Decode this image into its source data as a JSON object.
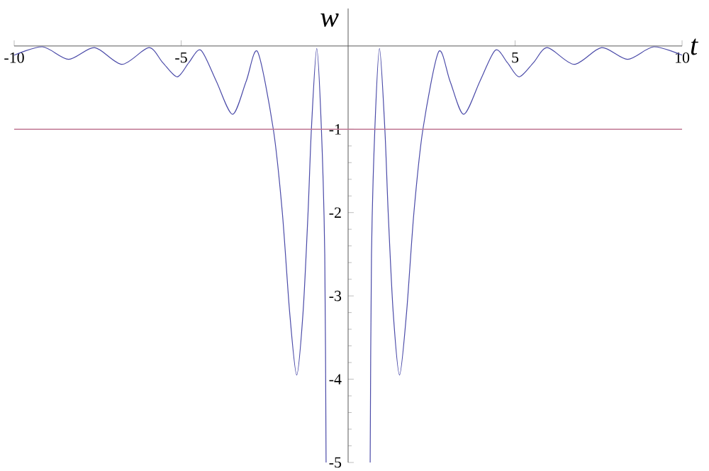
{
  "chart_data": {
    "type": "line",
    "xlabel": "t",
    "ylabel": "w",
    "xlim": [
      -10,
      10
    ],
    "ylim": [
      -5,
      0.45
    ],
    "xticks": [
      -10,
      -5,
      5,
      10
    ],
    "yticks": [
      -5,
      -4,
      -3,
      -2,
      -1
    ],
    "grid": false,
    "legend": false,
    "marker": "none",
    "line_style": "solid",
    "ref_lines": [
      {
        "axis": "y",
        "value": -1,
        "color": "#c07894"
      }
    ],
    "series": [
      {
        "color": "#4a4aa8",
        "x": [
          -10,
          -9.15,
          -8.37,
          -7.59,
          -6.77,
          -5.97,
          -5.55,
          -5.12,
          -4.77,
          -4.41,
          -3.95,
          -3.46,
          -3.05,
          -2.71,
          -2.24,
          -1.97,
          -1.75,
          -1.54,
          -1.35,
          -1.2,
          -1.1,
          -0.94,
          -0.8,
          -0.7,
          -0.66,
          0,
          0.66,
          0.7,
          0.8,
          0.94,
          1.1,
          1.2,
          1.35,
          1.54,
          1.75,
          1.97,
          2.24,
          2.71,
          3.05,
          3.46,
          3.95,
          4.41,
          4.77,
          5.12,
          5.55,
          5.97,
          6.77,
          7.59,
          8.37,
          9.15,
          10
        ],
        "values": [
          -0.11,
          -0.01,
          -0.16,
          -0.02,
          -0.22,
          -0.02,
          -0.2,
          -0.37,
          -0.2,
          -0.05,
          -0.42,
          -0.82,
          -0.42,
          -0.07,
          -1,
          -2,
          -3.2,
          -3.95,
          -3.2,
          -2,
          -1,
          -0.03,
          -1,
          -2.5,
          -5,
          null,
          -5,
          -2.5,
          -1,
          -0.03,
          -1,
          -2,
          -3.2,
          -3.95,
          -3.2,
          -2,
          -1,
          -0.07,
          -0.42,
          -0.82,
          -0.42,
          -0.05,
          -0.2,
          -0.37,
          -0.2,
          -0.02,
          -0.22,
          -0.02,
          -0.16,
          -0.01,
          -0.11
        ]
      }
    ]
  }
}
